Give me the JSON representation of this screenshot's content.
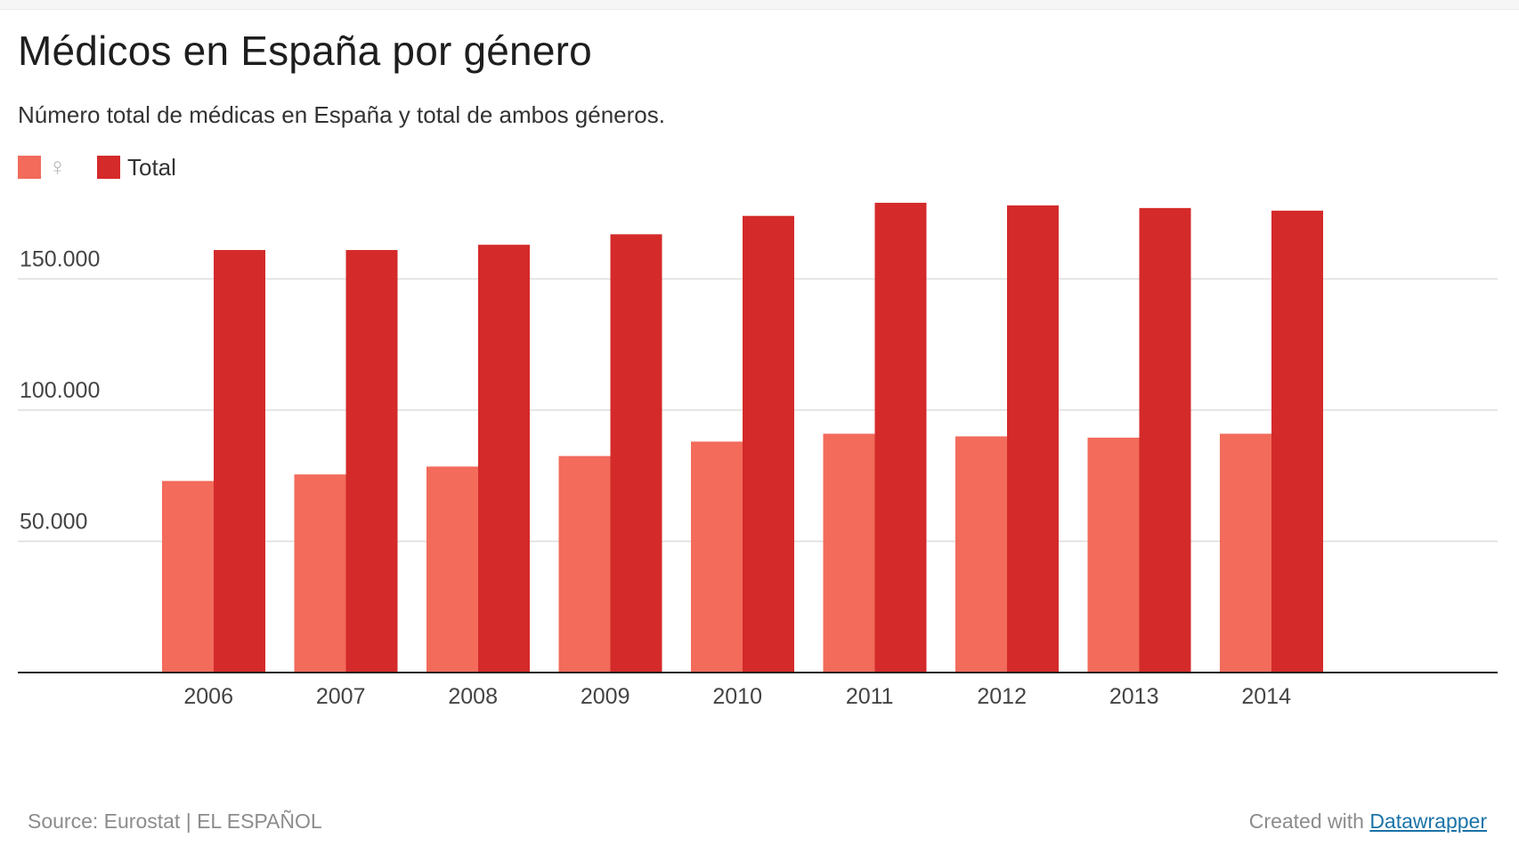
{
  "title": "Médicos en España por género",
  "subtitle": "Número total de médicas en España y total de ambos géneros.",
  "legend": {
    "female_label": "♀",
    "total_label": "Total"
  },
  "colors": {
    "female": "#f26b5b",
    "total": "#d42a2a",
    "grid": "#dddddd",
    "axis": "#222222",
    "tick_text": "#444444"
  },
  "chart_data": {
    "type": "bar",
    "title": "Médicos en España por género",
    "categories": [
      "2006",
      "2007",
      "2008",
      "2009",
      "2010",
      "2011",
      "2012",
      "2013",
      "2014"
    ],
    "series": [
      {
        "name": "♀",
        "values": [
          73000,
          75500,
          78500,
          82500,
          88000,
          91000,
          90000,
          89500,
          91000
        ]
      },
      {
        "name": "Total",
        "values": [
          161000,
          161000,
          163000,
          167000,
          174000,
          179000,
          178000,
          177000,
          176000
        ]
      }
    ],
    "yticks": [
      50000,
      100000,
      150000
    ],
    "ytick_labels": [
      "50.000",
      "100.000",
      "150.000"
    ],
    "ylim": [
      0,
      180000
    ],
    "xlabel": "",
    "ylabel": "",
    "grid": true,
    "legend_position": "top-left"
  },
  "footer": {
    "source": "Source: Eurostat | EL ESPAÑOL",
    "created_with": "Created with",
    "link_text": "Datawrapper"
  }
}
